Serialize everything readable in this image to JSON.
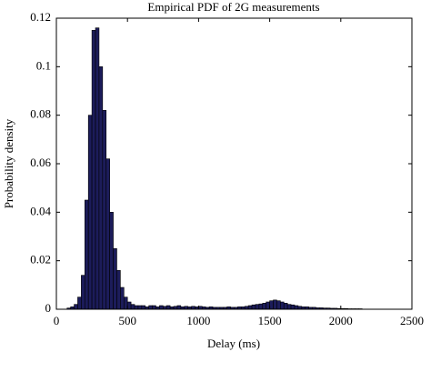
{
  "chart_data": {
    "type": "histogram",
    "title": "Empirical PDF of 2G measurements",
    "x_label": "Delay (ms)",
    "y_label": "Probability density",
    "color": "#1c1c5a",
    "bins": [
      75,
      100,
      125,
      150,
      175,
      200,
      225,
      250,
      275,
      300,
      325,
      350,
      375,
      400,
      425,
      450,
      475,
      500,
      525,
      550,
      575,
      600,
      625,
      650,
      675,
      700,
      725,
      750,
      775,
      800,
      825,
      850,
      875,
      900,
      925,
      950,
      975,
      1000,
      1025,
      1050,
      1075,
      1100,
      1125,
      1150,
      1175,
      1200,
      1225,
      1250,
      1275,
      1300,
      1325,
      1350,
      1375,
      1400,
      1425,
      1450,
      1475,
      1500,
      1525,
      1550,
      1575,
      1600,
      1625,
      1650,
      1675,
      1700,
      1725,
      1750,
      1775,
      1800,
      1825,
      1850,
      1875,
      1900,
      1925,
      1950,
      1975,
      2000,
      2025,
      2050,
      2075,
      2100,
      2125,
      2150
    ],
    "values": [
      0.0005,
      0.001,
      0.002,
      0.005,
      0.014,
      0.045,
      0.08,
      0.115,
      0.116,
      0.1,
      0.082,
      0.062,
      0.04,
      0.025,
      0.016,
      0.009,
      0.005,
      0.003,
      0.002,
      0.0015,
      0.0015,
      0.0015,
      0.001,
      0.0015,
      0.0015,
      0.001,
      0.0015,
      0.0012,
      0.0015,
      0.001,
      0.0012,
      0.0015,
      0.001,
      0.0012,
      0.001,
      0.0012,
      0.001,
      0.0012,
      0.001,
      0.0008,
      0.001,
      0.0008,
      0.0008,
      0.0008,
      0.0008,
      0.001,
      0.0008,
      0.0008,
      0.001,
      0.001,
      0.0012,
      0.0015,
      0.0018,
      0.002,
      0.0022,
      0.0025,
      0.003,
      0.0035,
      0.0038,
      0.0035,
      0.003,
      0.0025,
      0.002,
      0.0018,
      0.0015,
      0.0012,
      0.001,
      0.001,
      0.0008,
      0.0008,
      0.0006,
      0.0006,
      0.0005,
      0.0005,
      0.0004,
      0.0004,
      0.0003,
      0.0003,
      0.0003,
      0.0002,
      0.0002,
      0.0002,
      0.0002
    ],
    "xlim": [
      0,
      2500
    ],
    "xticks": [
      0,
      500,
      1000,
      1500,
      2000,
      2500
    ],
    "ylim": [
      0,
      0.12
    ],
    "yticks": [
      0,
      0.02,
      0.04,
      0.06,
      0.08,
      0.1,
      0.12
    ]
  }
}
